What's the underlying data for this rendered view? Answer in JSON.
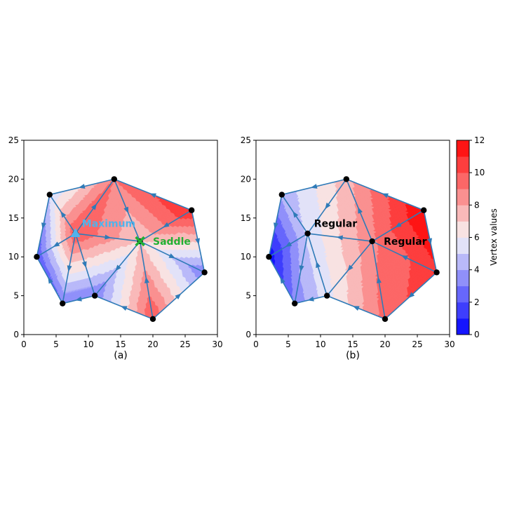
{
  "chart_data": [
    {
      "type": "contour-mesh",
      "caption": "(a)",
      "xlim": [
        0,
        30
      ],
      "ylim": [
        0,
        25
      ],
      "xticks": [
        "0",
        "5",
        "10",
        "15",
        "20",
        "25",
        "30"
      ],
      "yticks": [
        "0",
        "5",
        "10",
        "15",
        "20",
        "25"
      ],
      "vertices": [
        {
          "x": 2,
          "y": 10,
          "value": 2
        },
        {
          "x": 4,
          "y": 18,
          "value": 5
        },
        {
          "x": 6,
          "y": 4,
          "value": 3
        },
        {
          "x": 8,
          "y": 13,
          "value": 10
        },
        {
          "x": 11,
          "y": 5,
          "value": 3
        },
        {
          "x": 14,
          "y": 20,
          "value": 9
        },
        {
          "x": 18,
          "y": 12,
          "value": 7
        },
        {
          "x": 20,
          "y": 2,
          "value": 10
        },
        {
          "x": 26,
          "y": 16,
          "value": 11
        },
        {
          "x": 28,
          "y": 8,
          "value": 3
        }
      ],
      "edges": [
        [
          0,
          1
        ],
        [
          0,
          3
        ],
        [
          1,
          3
        ],
        [
          1,
          5
        ],
        [
          3,
          5
        ],
        [
          5,
          6
        ],
        [
          3,
          6
        ],
        [
          3,
          4
        ],
        [
          3,
          2
        ],
        [
          0,
          2
        ],
        [
          2,
          4
        ],
        [
          4,
          6
        ],
        [
          4,
          7
        ],
        [
          6,
          7
        ],
        [
          7,
          9
        ],
        [
          6,
          9
        ],
        [
          6,
          8
        ],
        [
          8,
          9
        ],
        [
          5,
          8
        ]
      ],
      "annotations": [
        {
          "text": "Maximum",
          "x": 9,
          "y": 14.3,
          "color": "#4fb3ec",
          "marker": "triangle",
          "mx": 8,
          "my": 13
        },
        {
          "text": "Saddle",
          "x": 20,
          "y": 12,
          "color": "#22b033",
          "marker": "x",
          "mx": 18,
          "my": 12
        }
      ]
    },
    {
      "type": "contour-mesh",
      "caption": "(b)",
      "xlim": [
        0,
        30
      ],
      "ylim": [
        0,
        25
      ],
      "xticks": [
        "0",
        "5",
        "10",
        "15",
        "20",
        "25",
        "30"
      ],
      "yticks": [
        "0",
        "5",
        "10",
        "15",
        "20",
        "25"
      ],
      "vertices": [
        {
          "x": 2,
          "y": 10,
          "value": 0.3
        },
        {
          "x": 4,
          "y": 18,
          "value": 4.2
        },
        {
          "x": 6,
          "y": 4,
          "value": 3.2
        },
        {
          "x": 8,
          "y": 13,
          "value": 5.2
        },
        {
          "x": 11,
          "y": 5,
          "value": 5.6
        },
        {
          "x": 14,
          "y": 20,
          "value": 7.6
        },
        {
          "x": 18,
          "y": 12,
          "value": 8.8
        },
        {
          "x": 20,
          "y": 2,
          "value": 9.4
        },
        {
          "x": 26,
          "y": 16,
          "value": 12
        },
        {
          "x": 28,
          "y": 8,
          "value": 10.8
        }
      ],
      "edges": [
        [
          0,
          1
        ],
        [
          0,
          3
        ],
        [
          1,
          3
        ],
        [
          1,
          5
        ],
        [
          3,
          5
        ],
        [
          5,
          6
        ],
        [
          3,
          6
        ],
        [
          3,
          4
        ],
        [
          3,
          2
        ],
        [
          0,
          2
        ],
        [
          2,
          4
        ],
        [
          4,
          6
        ],
        [
          4,
          7
        ],
        [
          6,
          7
        ],
        [
          7,
          9
        ],
        [
          6,
          9
        ],
        [
          6,
          8
        ],
        [
          8,
          9
        ],
        [
          5,
          8
        ]
      ],
      "annotations": [
        {
          "text": "Regular",
          "x": 9,
          "y": 14.3,
          "color": "#000000"
        },
        {
          "text": "Regular",
          "x": 19.8,
          "y": 12,
          "color": "#000000"
        }
      ]
    }
  ],
  "colorbar": {
    "label": "Vertex values",
    "min": 0,
    "max": 12,
    "ticks": [
      "0",
      "2",
      "4",
      "6",
      "8",
      "10",
      "12"
    ],
    "levels": 12
  },
  "colors": {
    "edge": "#2f7bb8",
    "vertex": "#000000",
    "cold": "#0000ff",
    "neutral": "#f7f7f7",
    "hot": "#ff0000"
  }
}
